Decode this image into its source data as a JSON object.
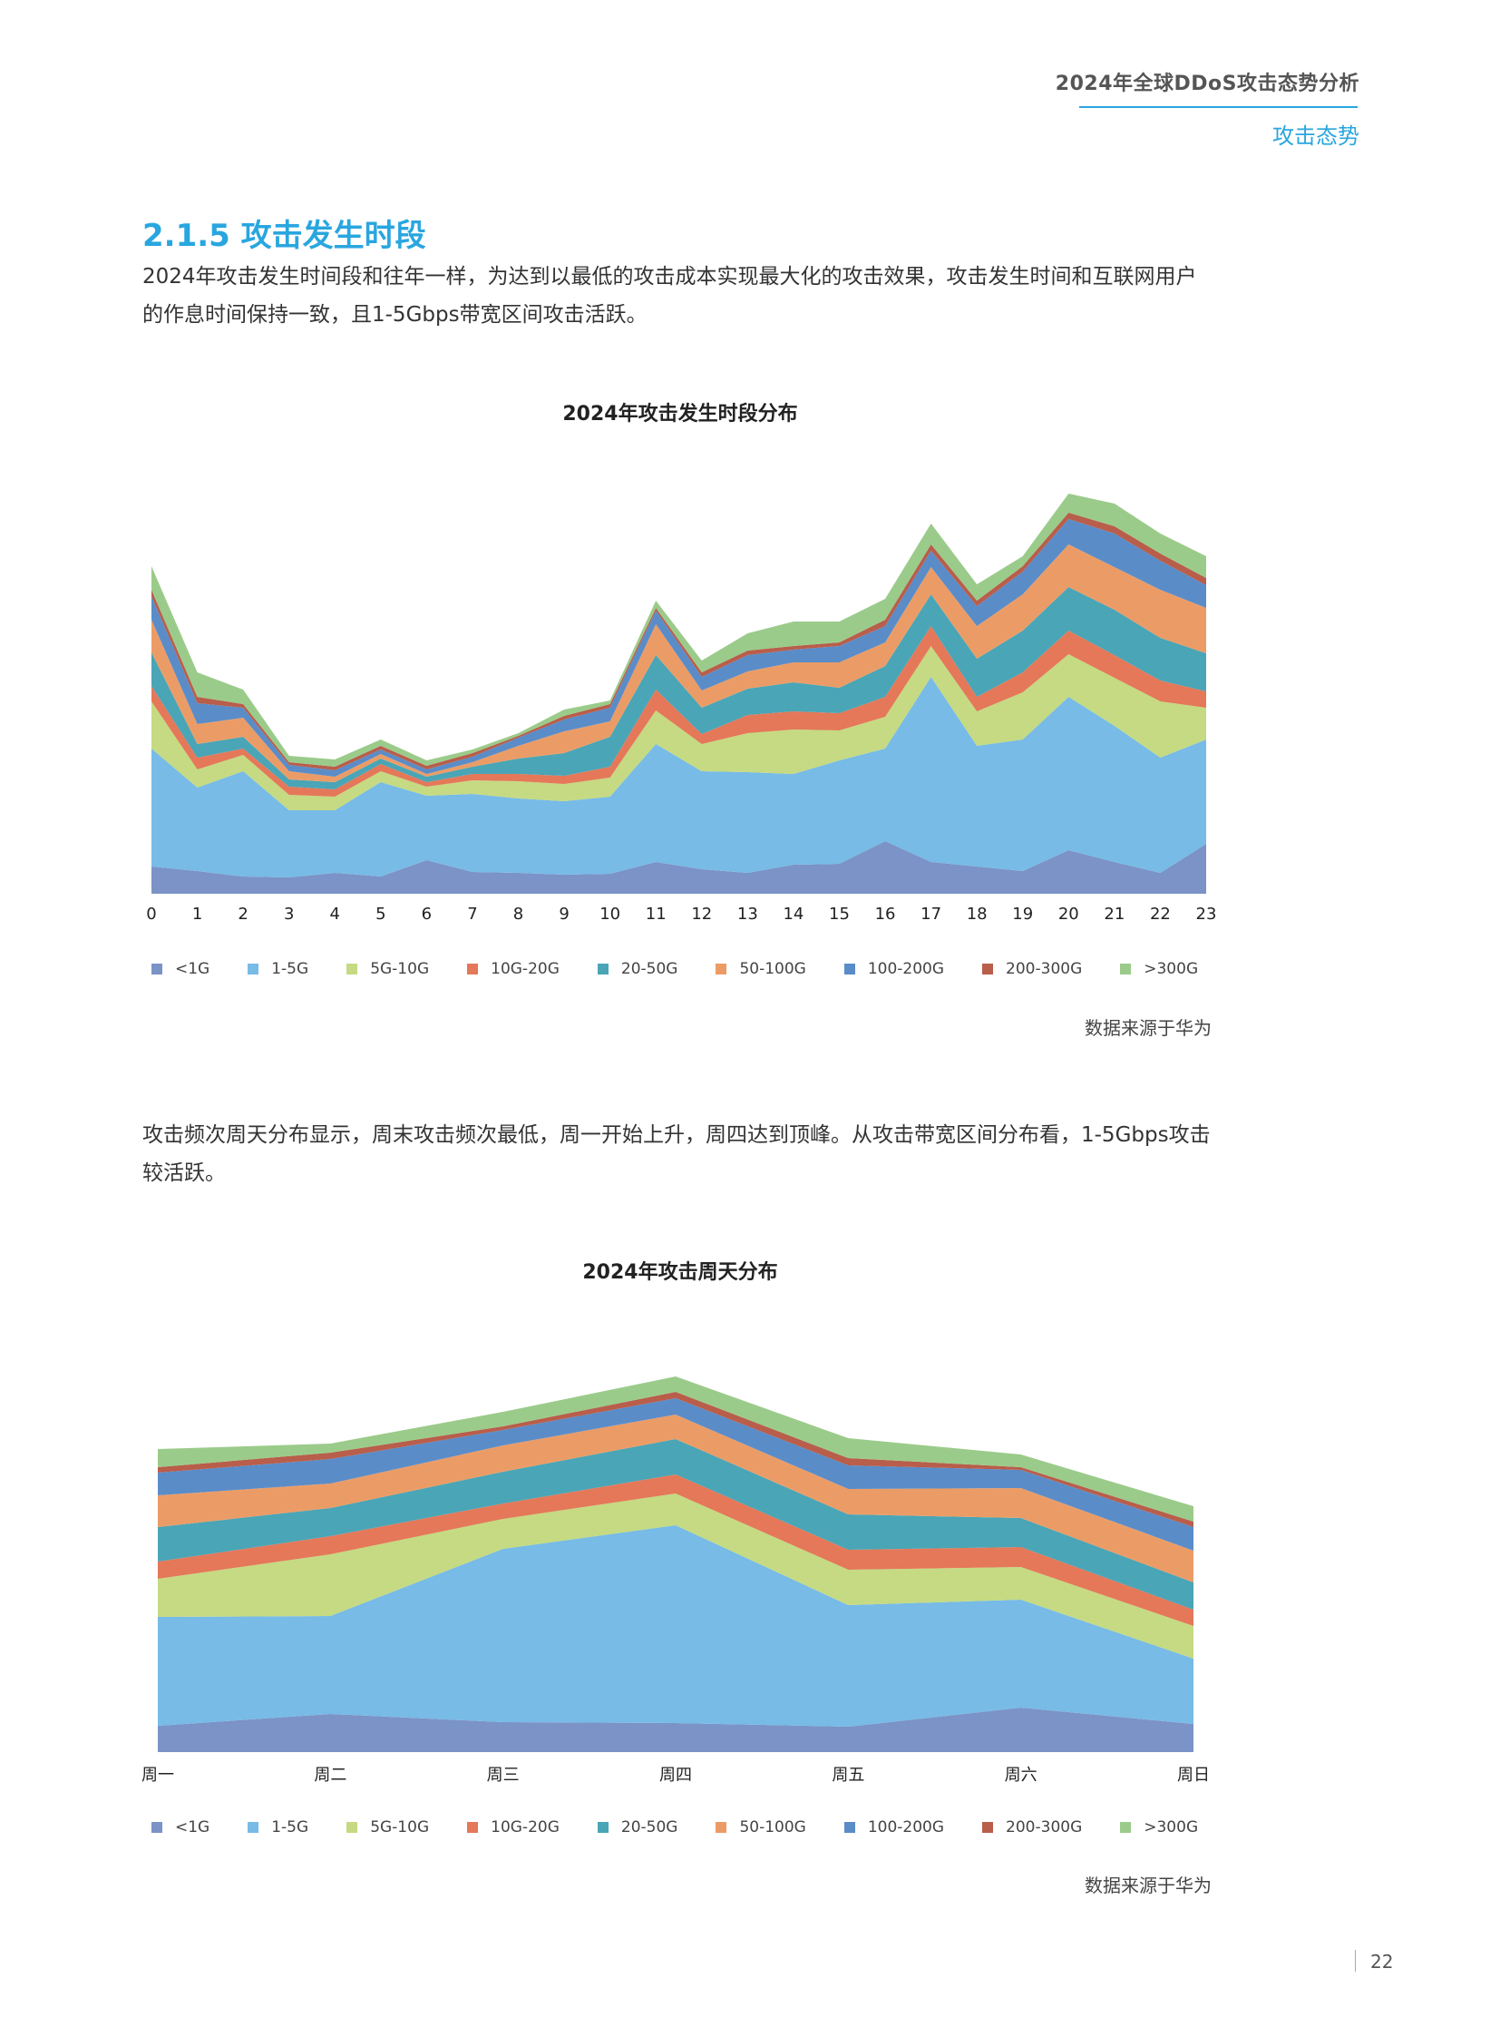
{
  "header": {
    "report_title": "2024年全球DDoS攻击态势分析",
    "section_label": "攻击态势",
    "accent_color": "#29a6df"
  },
  "section": {
    "title": "2.1.5 攻击发生时段",
    "paragraph1": "2024年攻击发生时间段和往年一样，为达到以最低的攻击成本实现最大化的攻击效果，攻击发生时间和互联网用户的作息时间保持一致，且1-5Gbps带宽区间攻击活跃。",
    "paragraph2": "攻击频次周天分布显示，周末攻击频次最低，周一开始上升，周四达到顶峰。从攻击带宽区间分布看，1-5Gbps攻击较活跃。"
  },
  "legend": {
    "labels": [
      "<1G",
      "1-5G",
      "5G-10G",
      "10G-20G",
      "20-50G",
      "50-100G",
      "100-200G",
      "200-300G",
      ">300G"
    ],
    "colors": [
      "#7b93c6",
      "#77bbe6",
      "#c5da82",
      "#e47859",
      "#4aa5b6",
      "#eb9c66",
      "#5a8cc8",
      "#b85e4b",
      "#9bcb8a"
    ]
  },
  "source_note": "数据来源于华为",
  "page_number": "22",
  "chart_data": [
    {
      "type": "area",
      "stacked": true,
      "title": "2024年攻击发生时段分布",
      "xlabel": "",
      "ylabel": "",
      "categories": [
        "0",
        "1",
        "2",
        "3",
        "4",
        "5",
        "6",
        "7",
        "8",
        "9",
        "10",
        "11",
        "12",
        "13",
        "14",
        "15",
        "16",
        "17",
        "18",
        "19",
        "20",
        "21",
        "22",
        "23"
      ],
      "legend_position": "bottom",
      "grid": false,
      "note": "relative values (no y-axis shown); units are stacked heights",
      "series": [
        {
          "name": "<1G",
          "values": [
            30,
            25,
            19,
            18,
            23,
            19,
            37,
            24,
            23,
            21,
            22,
            35,
            27,
            23,
            32,
            33,
            58,
            35,
            30,
            25,
            48,
            35,
            23,
            55
          ]
        },
        {
          "name": "1-5G",
          "values": [
            130,
            92,
            116,
            74,
            69,
            104,
            71,
            86,
            82,
            81,
            85,
            130,
            108,
            111,
            100,
            114,
            102,
            204,
            133,
            145,
            169,
            150,
            127,
            115
          ]
        },
        {
          "name": "5G-10G",
          "values": [
            52,
            20,
            18,
            17,
            15,
            12,
            10,
            15,
            19,
            19,
            21,
            37,
            30,
            43,
            49,
            33,
            35,
            34,
            38,
            52,
            47,
            53,
            62,
            35
          ]
        },
        {
          "name": "10G-20G",
          "values": [
            17,
            13,
            7,
            9,
            8,
            8,
            5,
            7,
            8,
            9,
            12,
            23,
            11,
            20,
            20,
            19,
            22,
            22,
            16,
            22,
            26,
            25,
            23,
            18
          ]
        },
        {
          "name": "20-50G",
          "values": [
            37,
            15,
            13,
            8,
            8,
            6,
            6,
            8,
            17,
            25,
            33,
            38,
            29,
            29,
            32,
            28,
            34,
            35,
            42,
            46,
            48,
            50,
            47,
            42
          ]
        },
        {
          "name": "50-100G",
          "values": [
            36,
            22,
            21,
            9,
            6,
            5,
            3,
            5,
            14,
            24,
            17,
            34,
            19,
            19,
            22,
            28,
            26,
            30,
            36,
            40,
            47,
            47,
            53,
            50
          ]
        },
        {
          "name": "100-200G",
          "values": [
            26,
            23,
            11,
            7,
            7,
            5,
            5,
            6,
            9,
            13,
            15,
            15,
            15,
            18,
            14,
            18,
            18,
            18,
            22,
            25,
            28,
            37,
            32,
            25
          ]
        },
        {
          "name": "200-300G",
          "values": [
            7,
            7,
            4,
            3,
            4,
            4,
            4,
            4,
            2,
            4,
            4,
            3,
            5,
            5,
            4,
            4,
            7,
            7,
            6,
            6,
            7,
            8,
            8,
            8
          ]
        },
        {
          "name": ">300G",
          "values": [
            26,
            27,
            16,
            7,
            8,
            7,
            6,
            4,
            3,
            7,
            4,
            8,
            13,
            19,
            27,
            23,
            23,
            23,
            18,
            11,
            21,
            25,
            22,
            24
          ]
        }
      ]
    },
    {
      "type": "area",
      "stacked": true,
      "title": "2024年攻击周天分布",
      "xlabel": "",
      "ylabel": "",
      "categories": [
        "周一",
        "周二",
        "周三",
        "周四",
        "周五",
        "周六",
        "周日"
      ],
      "legend_position": "bottom",
      "grid": false,
      "note": "relative values (no y-axis shown); units are stacked heights",
      "series": [
        {
          "name": "<1G",
          "values": [
            29,
            42,
            33,
            32,
            28,
            49,
            31
          ]
        },
        {
          "name": "1-5G",
          "values": [
            120,
            108,
            191,
            218,
            134,
            119,
            72
          ]
        },
        {
          "name": "5G-10G",
          "values": [
            42,
            68,
            33,
            35,
            39,
            36,
            36
          ]
        },
        {
          "name": "10G-20G",
          "values": [
            19,
            20,
            17,
            21,
            22,
            22,
            18
          ]
        },
        {
          "name": "20-50G",
          "values": [
            38,
            31,
            35,
            39,
            39,
            32,
            30
          ]
        },
        {
          "name": "50-100G",
          "values": [
            35,
            27,
            29,
            27,
            28,
            33,
            35
          ]
        },
        {
          "name": "100-200G",
          "values": [
            25,
            27,
            17,
            18,
            26,
            20,
            26
          ]
        },
        {
          "name": "200-300G",
          "values": [
            6,
            7,
            4,
            7,
            8,
            3,
            6
          ]
        },
        {
          "name": ">300G",
          "values": [
            20,
            10,
            16,
            17,
            22,
            14,
            17
          ]
        }
      ]
    }
  ]
}
